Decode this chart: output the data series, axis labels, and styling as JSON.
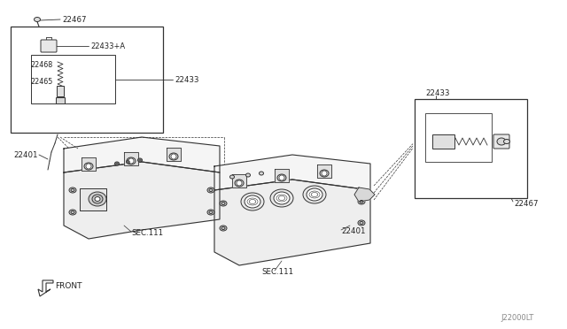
{
  "background_color": "#ffffff",
  "line_color": "#333333",
  "text_color": "#222222",
  "figsize": [
    6.4,
    3.72
  ],
  "dpi": 100,
  "labels": {
    "22467_left": "22467",
    "22433A_left": "22433+A",
    "22468_left": "22468",
    "22465_left": "22465",
    "22433_left": "22433",
    "22401_left": "22401",
    "sec111_left": "SEC.111",
    "front": "FRONT",
    "22433_right": "22433",
    "22465_right": "22465",
    "22433A_right": "22433+A",
    "22468_right": "22468",
    "22467_right": "22467",
    "22401_right": "22401",
    "sec111_right": "SEC.111",
    "watermark": "J22000LT"
  }
}
